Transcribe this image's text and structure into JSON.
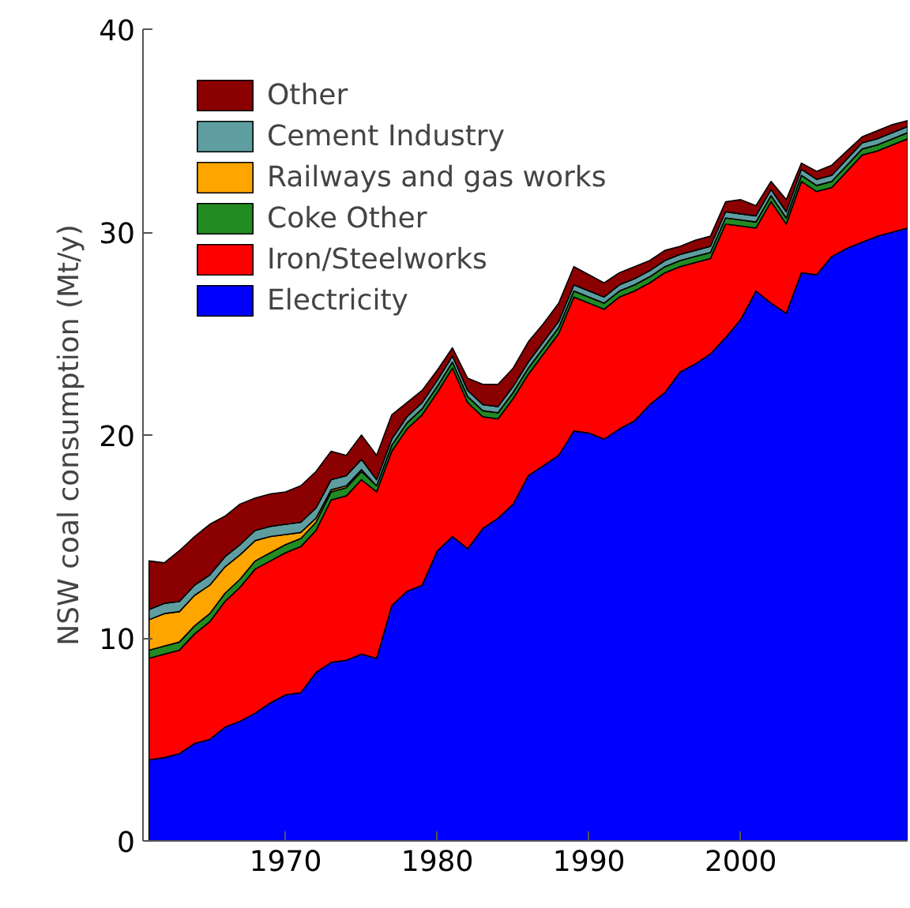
{
  "chart_data": {
    "type": "area",
    "stacked": true,
    "ylabel": "NSW coal consumption (Mt/y)",
    "x": [
      1961,
      1962,
      1963,
      1964,
      1965,
      1966,
      1967,
      1968,
      1969,
      1970,
      1971,
      1972,
      1973,
      1974,
      1975,
      1976,
      1977,
      1978,
      1979,
      1980,
      1981,
      1982,
      1983,
      1984,
      1985,
      1986,
      1987,
      1988,
      1989,
      1990,
      1991,
      1992,
      1993,
      1994,
      1995,
      1996,
      1997,
      1998,
      1999,
      2000,
      2001,
      2002,
      2003,
      2004,
      2005,
      2006,
      2007,
      2008,
      2009,
      2010,
      2011
    ],
    "xlim": [
      1960.6,
      2011
    ],
    "ylim": [
      0,
      40
    ],
    "xticks": [
      1970,
      1980,
      1990,
      2000
    ],
    "yticks": [
      0,
      10,
      20,
      30,
      40
    ],
    "grid": false,
    "legend": "top left",
    "series": [
      {
        "name": "Electricity",
        "color": "#0000ff",
        "values": [
          4.0,
          4.1,
          4.3,
          4.8,
          5.0,
          5.6,
          5.9,
          6.3,
          6.8,
          7.2,
          7.3,
          8.3,
          8.8,
          8.9,
          9.2,
          9.0,
          11.6,
          12.3,
          12.6,
          14.3,
          15.0,
          14.4,
          15.4,
          15.9,
          16.6,
          18.0,
          18.5,
          19.0,
          20.2,
          20.1,
          19.8,
          20.3,
          20.7,
          21.5,
          22.1,
          23.1,
          23.5,
          24.0,
          24.8,
          25.7,
          27.1,
          26.5,
          26.0,
          28.0,
          27.9,
          28.8,
          29.2,
          29.5,
          29.8,
          30.0,
          30.2
        ]
      },
      {
        "name": "Iron/Steelworks",
        "color": "#ff0000",
        "values": [
          5.0,
          5.1,
          5.1,
          5.4,
          5.8,
          6.2,
          6.6,
          7.1,
          7.0,
          7.0,
          7.2,
          7.0,
          8.0,
          8.1,
          8.6,
          8.2,
          7.6,
          8.0,
          8.4,
          7.8,
          8.3,
          7.2,
          5.5,
          4.9,
          5.2,
          5.0,
          5.5,
          6.0,
          6.6,
          6.4,
          6.4,
          6.5,
          6.4,
          6.0,
          5.9,
          5.2,
          5.0,
          4.7,
          5.6,
          4.6,
          3.1,
          5.0,
          4.4,
          4.5,
          4.1,
          3.4,
          3.8,
          4.3,
          4.2,
          4.3,
          4.4
        ]
      },
      {
        "name": "Coke Other",
        "color": "#228b22",
        "values": [
          0.4,
          0.4,
          0.4,
          0.4,
          0.4,
          0.4,
          0.4,
          0.4,
          0.4,
          0.4,
          0.4,
          0.4,
          0.4,
          0.4,
          0.4,
          0.3,
          0.3,
          0.3,
          0.3,
          0.3,
          0.3,
          0.3,
          0.3,
          0.3,
          0.3,
          0.3,
          0.3,
          0.3,
          0.3,
          0.3,
          0.3,
          0.3,
          0.3,
          0.3,
          0.3,
          0.3,
          0.3,
          0.3,
          0.3,
          0.3,
          0.3,
          0.3,
          0.3,
          0.3,
          0.3,
          0.3,
          0.3,
          0.3,
          0.3,
          0.3,
          0.3
        ]
      },
      {
        "name": "Railways and gas works",
        "color": "#ffa500",
        "values": [
          1.5,
          1.6,
          1.5,
          1.5,
          1.4,
          1.3,
          1.2,
          1.0,
          0.8,
          0.5,
          0.3,
          0.2,
          0.1,
          0.1,
          0.1,
          0,
          0,
          0,
          0,
          0,
          0,
          0,
          0,
          0,
          0,
          0,
          0,
          0,
          0,
          0,
          0,
          0,
          0,
          0,
          0,
          0,
          0,
          0,
          0,
          0,
          0,
          0,
          0,
          0,
          0,
          0,
          0,
          0,
          0,
          0,
          0
        ]
      },
      {
        "name": "Cement Industry",
        "color": "#5f9ea0",
        "values": [
          0.5,
          0.5,
          0.5,
          0.5,
          0.5,
          0.5,
          0.5,
          0.5,
          0.5,
          0.5,
          0.5,
          0.5,
          0.5,
          0.5,
          0.5,
          0.3,
          0.3,
          0.3,
          0.3,
          0.3,
          0.3,
          0.3,
          0.3,
          0.3,
          0.3,
          0.3,
          0.3,
          0.3,
          0.3,
          0.3,
          0.3,
          0.3,
          0.3,
          0.3,
          0.3,
          0.3,
          0.3,
          0.3,
          0.3,
          0.3,
          0.3,
          0.3,
          0.3,
          0.3,
          0.3,
          0.3,
          0.3,
          0.3,
          0.3,
          0.3,
          0.3
        ]
      },
      {
        "name": "Other",
        "color": "#8b0000",
        "values": [
          2.4,
          2.0,
          2.5,
          2.4,
          2.5,
          2.0,
          2.0,
          1.6,
          1.6,
          1.6,
          1.8,
          1.8,
          1.4,
          1.0,
          1.2,
          1.2,
          1.2,
          0.7,
          0.6,
          0.5,
          0.4,
          0.6,
          1.0,
          1.1,
          0.9,
          1.0,
          0.9,
          0.9,
          0.9,
          0.8,
          0.7,
          0.6,
          0.6,
          0.5,
          0.5,
          0.4,
          0.5,
          0.5,
          0.5,
          0.7,
          0.5,
          0.4,
          0.6,
          0.3,
          0.4,
          0.5,
          0.4,
          0.3,
          0.4,
          0.4,
          0.3
        ]
      }
    ]
  }
}
